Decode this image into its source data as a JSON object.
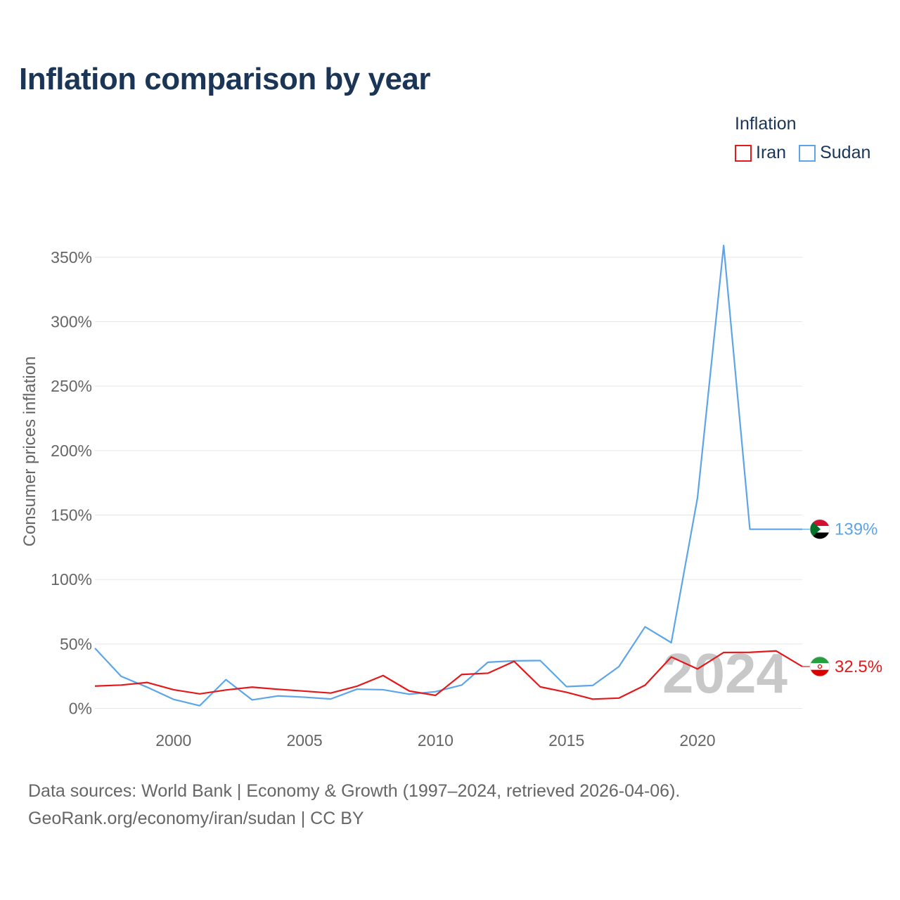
{
  "title": "Inflation comparison by year",
  "legend": {
    "title": "Inflation",
    "items": [
      {
        "name": "Iran",
        "color": "#e31a1c"
      },
      {
        "name": "Sudan",
        "color": "#5da5e8"
      }
    ]
  },
  "footer": {
    "line1": "Data sources: World Bank | Economy & Growth (1997–2024, retrieved 2026-04-06).",
    "line2": "GeoRank.org/economy/iran/sudan | CC BY"
  },
  "chart_data": {
    "type": "line",
    "title": "Inflation comparison by year",
    "ylabel": "Consumer prices inflation",
    "xlabel": "",
    "xlim": [
      1997,
      2024
    ],
    "ylim": [
      -15,
      375
    ],
    "x_ticks": [
      2000,
      2005,
      2010,
      2015,
      2020
    ],
    "y_ticks": [
      0,
      50,
      100,
      150,
      200,
      250,
      300,
      350
    ],
    "y_tick_labels": [
      "0%",
      "50%",
      "100%",
      "150%",
      "200%",
      "250%",
      "300%",
      "350%"
    ],
    "year_watermark": "2024",
    "series": [
      {
        "name": "Iran",
        "color": "#e31a1c",
        "end_label": "32.5%",
        "x": [
          1997,
          1998,
          1999,
          2000,
          2001,
          2002,
          2003,
          2004,
          2005,
          2006,
          2007,
          2008,
          2009,
          2010,
          2011,
          2012,
          2013,
          2014,
          2015,
          2016,
          2017,
          2018,
          2019,
          2020,
          2021,
          2022,
          2023,
          2024
        ],
        "values": [
          17.3,
          18.1,
          20.1,
          14.5,
          11.3,
          14.3,
          16.5,
          14.8,
          13.4,
          11.9,
          17.2,
          25.5,
          13.5,
          10.1,
          26.3,
          27.3,
          36.5,
          16.7,
          12.5,
          7.2,
          8.0,
          18.0,
          39.9,
          30.6,
          43.4,
          43.5,
          44.6,
          32.5
        ]
      },
      {
        "name": "Sudan",
        "color": "#5da5e8",
        "end_label": "139%",
        "x": [
          1997,
          1998,
          1999,
          2000,
          2001,
          2002,
          2003,
          2004,
          2005,
          2006,
          2007,
          2008,
          2009,
          2010,
          2011,
          2012,
          2013,
          2014,
          2015,
          2016,
          2017,
          2018,
          2019,
          2020,
          2021,
          2022,
          2023,
          2024
        ],
        "values": [
          46.7,
          24.9,
          16.4,
          7.0,
          2.1,
          22.3,
          6.6,
          9.7,
          8.7,
          7.3,
          14.9,
          14.5,
          11.0,
          13.0,
          18.1,
          35.8,
          36.9,
          37.1,
          16.9,
          17.8,
          32.4,
          63.3,
          51.0,
          163.3,
          359.1,
          139.0,
          139.0,
          139.0
        ]
      }
    ]
  }
}
